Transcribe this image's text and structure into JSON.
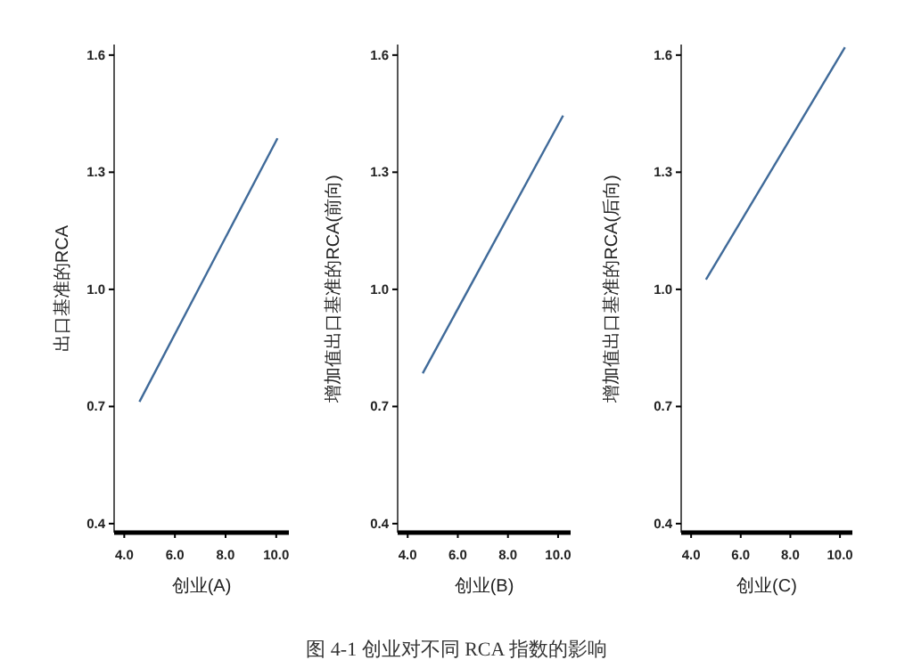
{
  "chart_data": [
    {
      "type": "line",
      "x": [
        4.6,
        10.05
      ],
      "values": [
        0.712,
        1.387
      ],
      "color": "#3f6a99",
      "xlabel": "创业(A)",
      "ylabel": "出口基准的RCA",
      "xlim": [
        3.6,
        10.5
      ],
      "ylim": [
        0.377,
        1.627
      ],
      "xticks": [
        {
          "value": 4,
          "label": "4.0"
        },
        {
          "value": 6,
          "label": "6.0"
        },
        {
          "value": 8,
          "label": "8.0"
        },
        {
          "value": 10,
          "label": "10.0"
        }
      ],
      "yticks": [
        {
          "value": 0.4,
          "label": "0.4"
        },
        {
          "value": 0.7,
          "label": "0.7"
        },
        {
          "value": 1.0,
          "label": "1.0"
        },
        {
          "value": 1.3,
          "label": "1.3"
        },
        {
          "value": 1.6,
          "label": "1.6"
        }
      ]
    },
    {
      "type": "line",
      "x": [
        4.6,
        10.2
      ],
      "values": [
        0.785,
        1.445
      ],
      "color": "#3f6a99",
      "xlabel": "创业(B)",
      "ylabel": "增加值出口基准的RCA(前向)",
      "xlim": [
        3.6,
        10.5
      ],
      "ylim": [
        0.377,
        1.627
      ],
      "xticks": [
        {
          "value": 4,
          "label": "4.0"
        },
        {
          "value": 6,
          "label": "6.0"
        },
        {
          "value": 8,
          "label": "8.0"
        },
        {
          "value": 10,
          "label": "10.0"
        }
      ],
      "yticks": [
        {
          "value": 0.4,
          "label": "0.4"
        },
        {
          "value": 0.7,
          "label": "0.7"
        },
        {
          "value": 1.0,
          "label": "1.0"
        },
        {
          "value": 1.3,
          "label": "1.3"
        },
        {
          "value": 1.6,
          "label": "1.6"
        }
      ],
      "annotations": [
        "图 4-1  创业对不同 RCA 指数的影响"
      ]
    },
    {
      "type": "line",
      "x": [
        4.6,
        10.2
      ],
      "values": [
        1.025,
        1.62
      ],
      "color": "#3f6a99",
      "xlabel": "创业(C)",
      "ylabel": "增加值出口基准的RCA(后向)",
      "xlim": [
        3.6,
        10.5
      ],
      "ylim": [
        0.377,
        1.627
      ],
      "xticks": [
        {
          "value": 4,
          "label": "4.0"
        },
        {
          "value": 6,
          "label": "6.0"
        },
        {
          "value": 8,
          "label": "8.0"
        },
        {
          "value": 10,
          "label": "10.0"
        }
      ],
      "yticks": [
        {
          "value": 0.4,
          "label": "0.4"
        },
        {
          "value": 0.7,
          "label": "0.7"
        },
        {
          "value": 1.0,
          "label": "1.0"
        },
        {
          "value": 1.3,
          "label": "1.3"
        },
        {
          "value": 1.6,
          "label": "1.6"
        }
      ]
    }
  ]
}
